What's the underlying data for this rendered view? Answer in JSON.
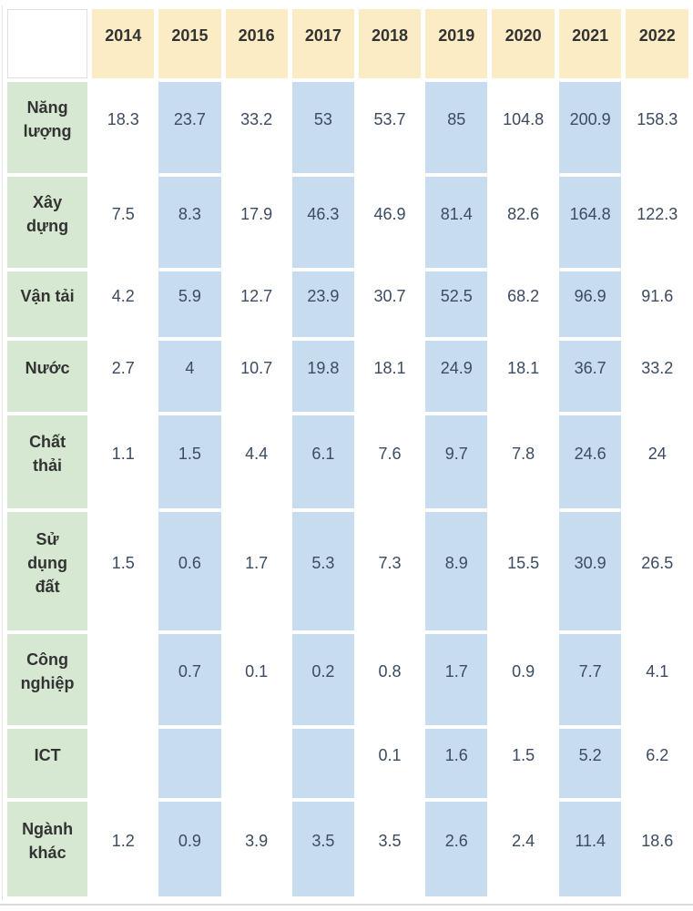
{
  "table": {
    "corner_label": "",
    "row_labels_display": [
      "Năng\nlượng",
      "Xây\ndựng",
      "Vận tải",
      "Nước",
      "Chất\nthải",
      "Sử\ndụng\nđất",
      "Công\nnghiệp",
      "ICT",
      "Ngành\nkhác"
    ]
  },
  "chart_data": {
    "type": "table",
    "title": "",
    "categories": [
      "2014",
      "2015",
      "2016",
      "2017",
      "2018",
      "2019",
      "2020",
      "2021",
      "2022"
    ],
    "series": [
      {
        "name": "Năng lượng",
        "values": [
          18.3,
          23.7,
          33.2,
          53,
          53.7,
          85,
          104.8,
          200.9,
          158.3
        ]
      },
      {
        "name": "Xây dựng",
        "values": [
          7.5,
          8.3,
          17.9,
          46.3,
          46.9,
          81.4,
          82.6,
          164.8,
          122.3
        ]
      },
      {
        "name": "Vận tải",
        "values": [
          4.2,
          5.9,
          12.7,
          23.9,
          30.7,
          52.5,
          68.2,
          96.9,
          91.6
        ]
      },
      {
        "name": "Nước",
        "values": [
          2.7,
          4,
          10.7,
          19.8,
          18.1,
          24.9,
          18.1,
          36.7,
          33.2
        ]
      },
      {
        "name": "Chất thải",
        "values": [
          1.1,
          1.5,
          4.4,
          6.1,
          7.6,
          9.7,
          7.8,
          24.6,
          24
        ]
      },
      {
        "name": "Sử dụng đất",
        "values": [
          1.5,
          0.6,
          1.7,
          5.3,
          7.3,
          8.9,
          15.5,
          30.9,
          26.5
        ]
      },
      {
        "name": "Công nghiệp",
        "values": [
          null,
          0.7,
          0.1,
          0.2,
          0.8,
          1.7,
          0.9,
          7.7,
          4.1
        ]
      },
      {
        "name": "ICT",
        "values": [
          null,
          null,
          null,
          null,
          0.1,
          1.6,
          1.5,
          5.2,
          6.2
        ]
      },
      {
        "name": "Ngành khác",
        "values": [
          1.2,
          0.9,
          3.9,
          3.5,
          3.5,
          2.6,
          2.4,
          11.4,
          18.6
        ]
      }
    ],
    "highlighted_year_columns": [
      "2015",
      "2017",
      "2019",
      "2021"
    ],
    "legend_position": "none",
    "grid": false
  },
  "colors": {
    "year_header_bg": "#fbecc6",
    "row_label_bg": "#d6e8d2",
    "stripe_column_bg": "#c8dcef",
    "plain_column_bg": "#ffffff",
    "header_text": "#333333",
    "label_text": "#333333",
    "data_text": "#3c4b60",
    "divider": "#d9d9d9"
  }
}
